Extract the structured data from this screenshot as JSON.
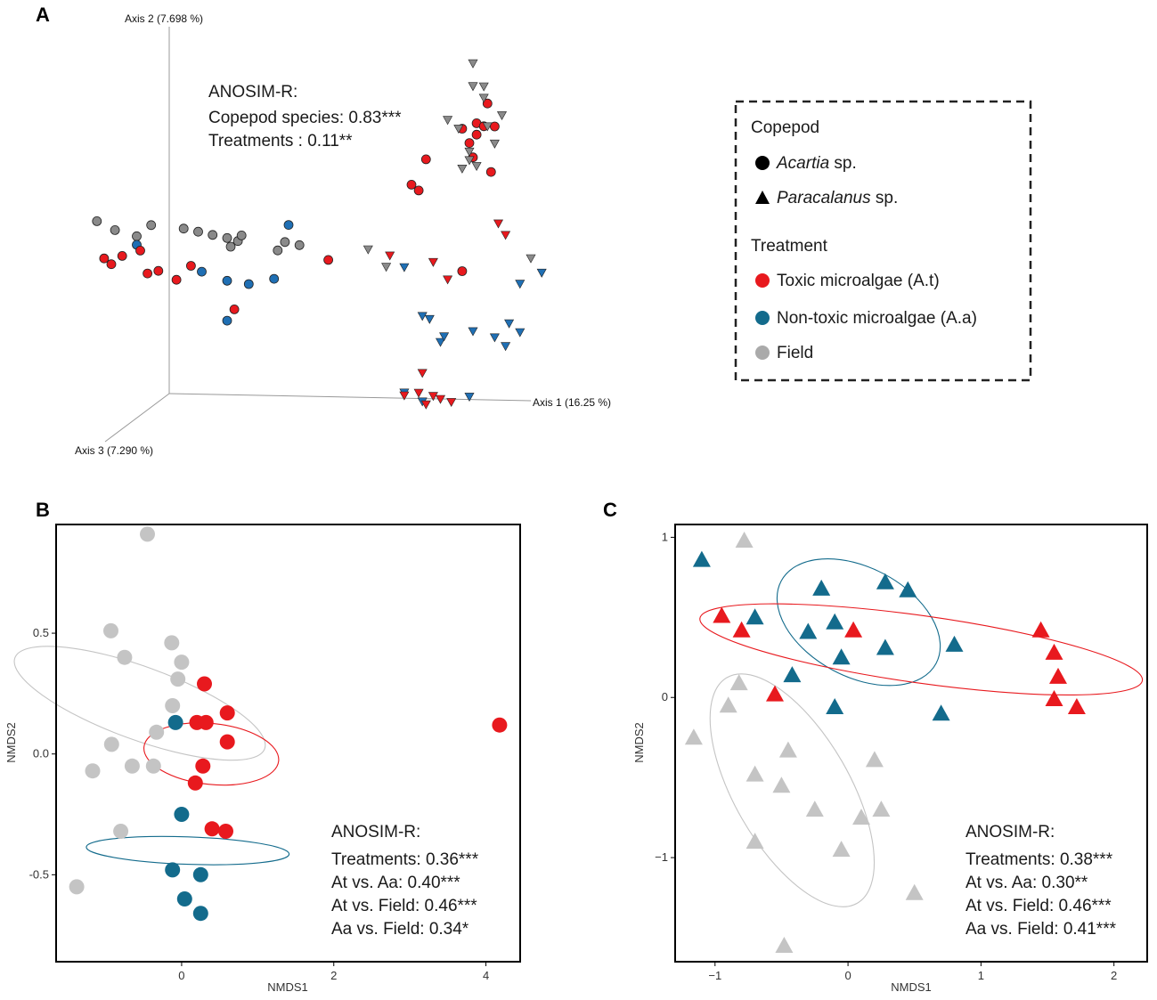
{
  "colors": {
    "toxic": "#e8191e",
    "nontoxic": "#1f6fb4",
    "field": "#8a8a8a",
    "teal": "#136b8c",
    "light_gray": "#c4c4c4",
    "frame": "#000000"
  },
  "chart_data": [
    {
      "panel": "A",
      "type": "scatter",
      "dimensions": 3,
      "axes": [
        "Axis 1 (16.25 %)",
        "Axis 2 (7.698 %)",
        "Axis 3 (7.290 %)"
      ],
      "stats_title": "ANOSIM-R:",
      "stats_lines": [
        "Copepod species: 0.83***",
        "Treatments : 0.11**"
      ],
      "series": [
        {
          "name": "Acartia - Field",
          "marker": "circle",
          "treatment": "field",
          "points": [
            [
              -2.0,
              6.0,
              0
            ],
            [
              -1.5,
              5.7,
              0
            ],
            [
              -0.9,
              5.5,
              0
            ],
            [
              -0.5,
              5.9,
              0
            ],
            [
              0.4,
              5.8,
              0
            ],
            [
              0.8,
              5.7,
              0
            ],
            [
              1.2,
              5.6,
              0
            ],
            [
              1.6,
              5.5,
              0
            ],
            [
              1.7,
              5.2,
              0
            ],
            [
              1.9,
              5.4,
              0
            ],
            [
              2.0,
              5.6,
              0
            ],
            [
              3.0,
              5.1,
              0
            ],
            [
              3.2,
              5.4,
              0
            ],
            [
              3.6,
              5.3,
              0
            ]
          ]
        },
        {
          "name": "Acartia - A.a",
          "marker": "circle",
          "treatment": "nontoxic",
          "points": [
            [
              -0.9,
              5.2,
              0
            ],
            [
              2.2,
              3.9,
              0
            ],
            [
              3.3,
              6.0,
              0
            ],
            [
              2.9,
              4.1,
              0
            ],
            [
              1.6,
              4.0,
              0
            ],
            [
              0.9,
              4.3,
              0
            ],
            [
              1.6,
              2.6,
              0
            ]
          ]
        },
        {
          "name": "Acartia - A.t",
          "marker": "circle",
          "treatment": "toxic",
          "points": [
            [
              -1.8,
              4.7,
              0
            ],
            [
              -1.6,
              4.5,
              0
            ],
            [
              -1.3,
              4.8,
              0
            ],
            [
              -0.8,
              5.0,
              0
            ],
            [
              -0.6,
              4.2,
              0
            ],
            [
              -0.3,
              4.3,
              0
            ],
            [
              0.2,
              4.0,
              0
            ],
            [
              0.6,
              4.5,
              0
            ],
            [
              1.8,
              3.0,
              0
            ],
            [
              4.4,
              4.8,
              0
            ],
            [
              6.7,
              7.5,
              0
            ],
            [
              6.9,
              7.3,
              0
            ],
            [
              7.1,
              8.4,
              0
            ],
            [
              8.1,
              4.5,
              0
            ],
            [
              8.1,
              9.5,
              0
            ],
            [
              8.3,
              9.0,
              0
            ],
            [
              8.4,
              8.5,
              0
            ],
            [
              8.5,
              9.3,
              0
            ],
            [
              8.5,
              9.7,
              0
            ],
            [
              8.7,
              9.6,
              0
            ],
            [
              8.8,
              10.4,
              0
            ],
            [
              9.0,
              9.6,
              0
            ],
            [
              8.9,
              8.0,
              0
            ]
          ]
        },
        {
          "name": "Paracalanus - Field",
          "marker": "triangle-down",
          "treatment": "field",
          "points": [
            [
              5.5,
              5.2,
              0
            ],
            [
              6.0,
              4.6,
              0
            ],
            [
              7.7,
              9.8,
              0
            ],
            [
              8.0,
              9.5,
              0
            ],
            [
              8.1,
              8.1,
              0
            ],
            [
              8.3,
              8.4,
              0
            ],
            [
              8.3,
              8.7,
              0
            ],
            [
              8.5,
              8.2,
              0
            ],
            [
              8.8,
              9.6,
              0
            ],
            [
              9.0,
              9.0,
              0
            ],
            [
              9.2,
              10.0,
              0
            ],
            [
              8.7,
              10.6,
              0
            ],
            [
              8.7,
              11.0,
              0
            ],
            [
              8.4,
              11.0,
              0
            ],
            [
              10.0,
              5.0,
              0
            ],
            [
              8.4,
              11.8,
              0
            ]
          ]
        },
        {
          "name": "Paracalanus - A.a",
          "marker": "triangle-down",
          "treatment": "nontoxic",
          "points": [
            [
              6.5,
              4.6,
              0
            ],
            [
              7.0,
              2.9,
              0
            ],
            [
              7.2,
              2.8,
              0
            ],
            [
              7.5,
              2.0,
              0
            ],
            [
              7.6,
              2.2,
              0
            ],
            [
              8.4,
              2.4,
              0
            ],
            [
              9.0,
              2.2,
              0
            ],
            [
              9.4,
              2.7,
              0
            ],
            [
              9.7,
              2.4,
              0
            ],
            [
              9.3,
              1.9,
              0
            ],
            [
              9.7,
              4.1,
              0
            ],
            [
              10.3,
              4.5,
              0
            ],
            [
              6.5,
              0.2,
              0
            ],
            [
              7.0,
              -0.1,
              0
            ],
            [
              8.3,
              0.1,
              0
            ]
          ]
        },
        {
          "name": "Paracalanus - A.t",
          "marker": "triangle-down",
          "treatment": "toxic",
          "points": [
            [
              6.1,
              5.0,
              0
            ],
            [
              7.3,
              4.8,
              0
            ],
            [
              7.7,
              4.2,
              0
            ],
            [
              9.1,
              6.2,
              0
            ],
            [
              9.3,
              5.8,
              0
            ],
            [
              7.0,
              0.9,
              0
            ],
            [
              6.5,
              0.1,
              0
            ],
            [
              6.9,
              0.2,
              0
            ],
            [
              7.1,
              -0.2,
              0
            ],
            [
              7.3,
              0.1,
              0
            ],
            [
              7.5,
              0.0,
              0
            ],
            [
              7.8,
              -0.1,
              0
            ]
          ]
        }
      ]
    },
    {
      "panel": "B",
      "type": "scatter",
      "xlabel": "NMDS1",
      "ylabel": "NMDS2",
      "xlim": [
        -1.65,
        4.45
      ],
      "ylim": [
        -0.86,
        0.95
      ],
      "xticks": [
        0,
        2,
        4
      ],
      "yticks": [
        -0.5,
        0.0,
        0.5
      ],
      "xtick_labels": [
        "0",
        "2",
        "4"
      ],
      "ytick_labels": [
        "-0.5",
        "0.0",
        "0.5"
      ],
      "marker": "circle",
      "series": [
        {
          "name": "Field",
          "color": "light_gray",
          "points": [
            [
              -0.45,
              0.91
            ],
            [
              -0.93,
              0.51
            ],
            [
              -0.75,
              0.4
            ],
            [
              -0.13,
              0.46
            ],
            [
              0.0,
              0.38
            ],
            [
              -0.05,
              0.31
            ],
            [
              -0.12,
              0.2
            ],
            [
              -0.33,
              0.09
            ],
            [
              -0.92,
              0.04
            ],
            [
              -0.37,
              -0.05
            ],
            [
              -0.65,
              -0.05
            ],
            [
              -1.17,
              -0.07
            ],
            [
              -0.8,
              -0.32
            ],
            [
              -1.38,
              -0.55
            ]
          ]
        },
        {
          "name": "A.a",
          "color": "teal",
          "points": [
            [
              -0.08,
              0.13
            ],
            [
              0.0,
              -0.25
            ],
            [
              -0.12,
              -0.48
            ],
            [
              0.25,
              -0.5
            ],
            [
              0.04,
              -0.6
            ],
            [
              0.25,
              -0.66
            ]
          ]
        },
        {
          "name": "A.t",
          "color": "toxic",
          "points": [
            [
              0.3,
              0.29
            ],
            [
              0.2,
              0.13
            ],
            [
              0.32,
              0.13
            ],
            [
              0.6,
              0.17
            ],
            [
              0.6,
              0.05
            ],
            [
              0.28,
              -0.05
            ],
            [
              0.18,
              -0.12
            ],
            [
              0.4,
              -0.31
            ],
            [
              0.58,
              -0.32
            ],
            [
              4.18,
              0.12
            ]
          ]
        }
      ],
      "ellipses": [
        {
          "series": "Field",
          "cx": -0.55,
          "cy": 0.21,
          "rx": 0.48,
          "ry": 0.55,
          "angle_deg": 70
        },
        {
          "series": "A.a",
          "cx": 0.08,
          "cy": -0.4,
          "rx": 0.18,
          "ry": 0.42,
          "angle_deg": 88
        },
        {
          "series": "A.t",
          "cx": 0.39,
          "cy": 0.0,
          "rx": 0.4,
          "ry": 0.28,
          "angle_deg": 84
        }
      ],
      "stats_title": "ANOSIM-R:",
      "stats_lines": [
        "Treatments: 0.36***",
        "At vs. Aa: 0.40***",
        "At vs. Field: 0.46***",
        "Aa vs. Field: 0.34*"
      ]
    },
    {
      "panel": "C",
      "type": "scatter",
      "xlabel": "NMDS1",
      "ylabel": "NMDS2",
      "xlim": [
        -1.3,
        2.25
      ],
      "ylim": [
        -1.65,
        1.08
      ],
      "xticks": [
        -1,
        0,
        1,
        2
      ],
      "yticks": [
        -1,
        0,
        1
      ],
      "xtick_labels": [
        "−1",
        "0",
        "1",
        "2"
      ],
      "ytick_labels": [
        "−1",
        "0",
        "1"
      ],
      "marker": "triangle-up",
      "series": [
        {
          "name": "Field",
          "color": "light_gray",
          "points": [
            [
              -0.78,
              0.98
            ],
            [
              -0.82,
              0.09
            ],
            [
              -0.9,
              -0.05
            ],
            [
              -1.16,
              -0.25
            ],
            [
              -0.7,
              -0.48
            ],
            [
              -0.45,
              -0.33
            ],
            [
              -0.5,
              -0.55
            ],
            [
              0.2,
              -0.39
            ],
            [
              0.25,
              -0.7
            ],
            [
              0.1,
              -0.75
            ],
            [
              -0.25,
              -0.7
            ],
            [
              -0.05,
              -0.95
            ],
            [
              -0.7,
              -0.9
            ],
            [
              0.5,
              -1.22
            ],
            [
              -0.48,
              -1.55
            ]
          ]
        },
        {
          "name": "A.a",
          "color": "teal",
          "points": [
            [
              -1.1,
              0.86
            ],
            [
              -0.7,
              0.5
            ],
            [
              -0.2,
              0.68
            ],
            [
              0.28,
              0.72
            ],
            [
              0.45,
              0.67
            ],
            [
              -0.3,
              0.41
            ],
            [
              -0.1,
              0.47
            ],
            [
              -0.05,
              0.25
            ],
            [
              0.28,
              0.31
            ],
            [
              0.8,
              0.33
            ],
            [
              -0.42,
              0.14
            ],
            [
              -0.1,
              -0.06
            ],
            [
              0.7,
              -0.1
            ]
          ]
        },
        {
          "name": "A.t",
          "color": "toxic",
          "points": [
            [
              -0.95,
              0.51
            ],
            [
              -0.8,
              0.42
            ],
            [
              0.04,
              0.42
            ],
            [
              -0.55,
              0.02
            ],
            [
              1.45,
              0.42
            ],
            [
              1.55,
              0.28
            ],
            [
              1.58,
              0.13
            ],
            [
              1.55,
              -0.01
            ],
            [
              1.72,
              -0.06
            ]
          ]
        }
      ],
      "ellipses": [
        {
          "series": "Field",
          "cx": -0.42,
          "cy": -0.58,
          "rx": 0.98,
          "ry": 0.36,
          "angle_deg": -60
        },
        {
          "series": "A.a",
          "cx": 0.08,
          "cy": 0.47,
          "rx": 0.66,
          "ry": 0.34,
          "angle_deg": -28
        },
        {
          "series": "A.t",
          "cx": 0.55,
          "cy": 0.3,
          "rx": 1.68,
          "ry": 0.21,
          "angle_deg": -8
        }
      ],
      "stats_title": "ANOSIM-R:",
      "stats_lines": [
        "Treatments: 0.38***",
        "At vs. Aa: 0.30**",
        "At vs. Field: 0.46***",
        "Aa vs. Field: 0.41***"
      ]
    }
  ],
  "panels": {
    "a": "A",
    "b": "B",
    "c": "C"
  },
  "legend": {
    "copepod_title": "Copepod",
    "acartia_italic": "Acartia",
    "acartia_rest": " sp.",
    "paracalanus_italic": "Paracalanus",
    "paracalanus_rest": " sp.",
    "treatment_title": "Treatment",
    "toxic": "Toxic microalgae (A.t)",
    "nontoxic": "Non-toxic microalgae (A.a)",
    "field": "Field"
  }
}
